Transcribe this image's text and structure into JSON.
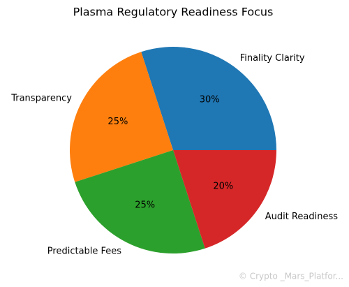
{
  "chart_data": {
    "type": "pie",
    "title": "Plasma Regulatory Readiness Focus",
    "categories": [
      "Finality Clarity",
      "Transparency",
      "Predictable Fees",
      "Audit Readiness"
    ],
    "values": [
      30,
      25,
      25,
      20
    ],
    "value_labels": [
      "30%",
      "25%",
      "25%",
      "20%"
    ],
    "colors": [
      "#1f77b4",
      "#ff7f0e",
      "#2ca02c",
      "#d62728"
    ],
    "start_angle": 0,
    "direction": "counterclockwise"
  },
  "watermark": "© Crypto _Mars_Platfor..."
}
